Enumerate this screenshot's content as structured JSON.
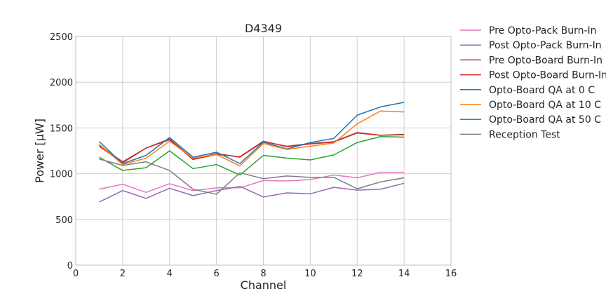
{
  "chart_data": {
    "type": "line",
    "title": "D4349",
    "xlabel": "Channel",
    "ylabel": "Power [μW]",
    "xlim": [
      0,
      16
    ],
    "ylim": [
      0,
      2500
    ],
    "xticks": [
      0,
      2,
      4,
      6,
      8,
      10,
      12,
      14,
      16
    ],
    "yticks": [
      0,
      500,
      1000,
      1500,
      2000,
      2500
    ],
    "grid": true,
    "legend_position": "outside-right",
    "x": [
      1,
      2,
      3,
      4,
      5,
      6,
      7,
      8,
      9,
      10,
      11,
      12,
      13,
      14
    ],
    "series": [
      {
        "name": "Pre Opto-Pack Burn-In",
        "color": "#e377c2",
        "values": [
          830,
          885,
          795,
          890,
          815,
          845,
          845,
          925,
          920,
          935,
          985,
          955,
          1015,
          1015
        ]
      },
      {
        "name": "Post Opto-Pack Burn-In",
        "color": "#9467bd",
        "values": [
          690,
          815,
          730,
          840,
          760,
          815,
          860,
          745,
          790,
          780,
          850,
          820,
          830,
          895
        ]
      },
      {
        "name": "Pre Opto-Board Burn-In",
        "color": "#8c564b",
        "values": [
          1310,
          1130,
          1280,
          1380,
          1160,
          1220,
          1180,
          1350,
          1300,
          1330,
          1350,
          1450,
          1420,
          1430
        ]
      },
      {
        "name": "Post Opto-Board Burn-In",
        "color": "#d62728",
        "values": [
          1300,
          1120,
          1280,
          1370,
          1155,
          1210,
          1185,
          1355,
          1295,
          1325,
          1345,
          1445,
          1420,
          1425
        ]
      },
      {
        "name": "Opto-Board QA at 0 C",
        "color": "#1f77b4",
        "values": [
          1350,
          1110,
          1200,
          1395,
          1180,
          1235,
          1110,
          1345,
          1270,
          1340,
          1385,
          1640,
          1730,
          1780
        ]
      },
      {
        "name": "Opto-Board QA at 10 C",
        "color": "#ff7f0e",
        "values": [
          1320,
          1100,
          1170,
          1355,
          1170,
          1210,
          1085,
          1330,
          1265,
          1300,
          1335,
          1545,
          1685,
          1675
        ]
      },
      {
        "name": "Opto-Board QA at 50 C",
        "color": "#2ca02c",
        "values": [
          1180,
          1035,
          1065,
          1250,
          1055,
          1100,
          985,
          1200,
          1170,
          1150,
          1205,
          1340,
          1405,
          1400
        ]
      },
      {
        "name": "Reception Test",
        "color": "#7f7f7f",
        "values": [
          1160,
          1090,
          1130,
          1035,
          830,
          775,
          1010,
          945,
          975,
          960,
          960,
          835,
          910,
          955
        ]
      }
    ]
  }
}
